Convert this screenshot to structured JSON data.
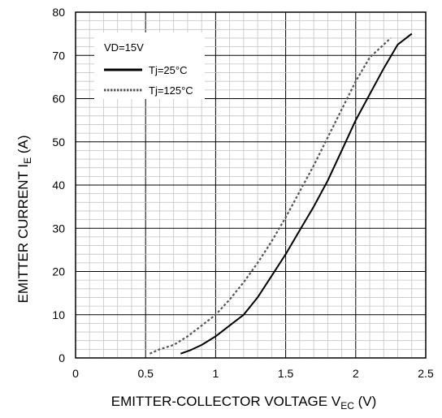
{
  "chart_data": {
    "type": "line",
    "title": "",
    "xlabel": {
      "main": "EMITTER-COLLECTOR VOLTAGE V",
      "sub": "EC",
      "unit": " (V)"
    },
    "ylabel": {
      "main": "EMITTER CURRENT I",
      "sub": "E",
      "unit": " (A)"
    },
    "xlim": [
      0,
      2.5
    ],
    "ylim": [
      0,
      80
    ],
    "x_ticks": [
      0,
      0.5,
      1,
      1.5,
      2,
      2.5
    ],
    "x_tick_labels": [
      "0",
      "0.5",
      "1",
      "1.5",
      "2",
      "2.5"
    ],
    "y_ticks": [
      0,
      10,
      20,
      30,
      40,
      50,
      60,
      70,
      80
    ],
    "y_tick_labels": [
      "0",
      "10",
      "20",
      "30",
      "40",
      "50",
      "60",
      "70",
      "80"
    ],
    "grid": {
      "major": true,
      "minor_x_step": 0.1,
      "minor_y_step": 2
    },
    "legend": {
      "placement": "top-left",
      "title": "VD=15V"
    },
    "series": [
      {
        "name": "Tj=25°C",
        "style": "solid",
        "color": "#000000",
        "x": [
          0.75,
          0.82,
          0.9,
          1.0,
          1.1,
          1.2,
          1.3,
          1.4,
          1.5,
          1.6,
          1.7,
          1.8,
          1.9,
          2.0,
          2.1,
          2.2,
          2.3,
          2.4
        ],
        "y": [
          1,
          1.8,
          3,
          5,
          7.5,
          10,
          14,
          19,
          24,
          29.5,
          35,
          41,
          48,
          55,
          61,
          67,
          72.5,
          75
        ]
      },
      {
        "name": "Tj=125°C",
        "style": "dotted",
        "color": "#555555",
        "x": [
          0.53,
          0.6,
          0.7,
          0.8,
          0.9,
          1.0,
          1.1,
          1.2,
          1.3,
          1.4,
          1.5,
          1.6,
          1.7,
          1.8,
          1.9,
          2.0,
          2.1,
          2.25
        ],
        "y": [
          1,
          2,
          3,
          5,
          7.5,
          10,
          13.5,
          17.5,
          22,
          27,
          32.5,
          38.5,
          44.5,
          51,
          57.5,
          64,
          69.5,
          74
        ]
      }
    ]
  }
}
